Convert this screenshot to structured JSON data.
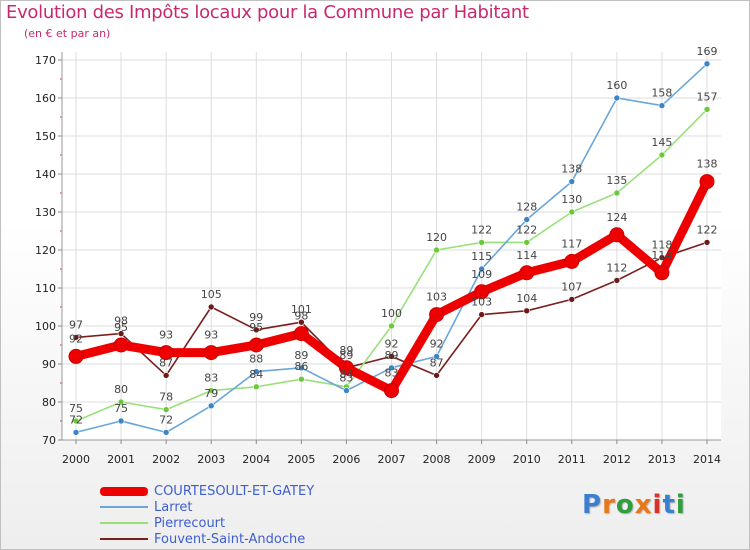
{
  "title": "Evolution des Impôts locaux pour la Commune par Habitant",
  "subtitle": "(en € et par an)",
  "logo": {
    "text": "Proxiti",
    "colors": [
      "#3a7fd0",
      "#e8791a",
      "#2f9e3c",
      "#e8791a",
      "#d6332a",
      "#3a7fd0",
      "#2f9e3c"
    ]
  },
  "chart_data": {
    "type": "line",
    "title": "Evolution des Impôts locaux pour la Commune par Habitant",
    "subtitle": "(en € et par an)",
    "xlabel": "",
    "ylabel": "",
    "categories": [
      "2000",
      "2001",
      "2002",
      "2003",
      "2004",
      "2005",
      "2006",
      "2007",
      "2008",
      "2009",
      "2010",
      "2011",
      "2012",
      "2013",
      "2014"
    ],
    "ylim": [
      70,
      170
    ],
    "yticks": [
      70,
      80,
      90,
      100,
      110,
      120,
      130,
      140,
      150,
      160,
      170
    ],
    "grid": true,
    "series": [
      {
        "name": "Fouvent-Saint-Andoche",
        "color": "#7a1f1f",
        "dot": "#6b1a1a",
        "values": [
          97,
          98,
          87,
          105,
          99,
          101,
          89,
          92,
          87,
          103,
          104,
          107,
          112,
          118,
          122
        ],
        "labels": [
          "97",
          "98",
          "87",
          "105",
          "99",
          "101",
          "89",
          "92",
          "87",
          "103",
          "104",
          "107",
          "112",
          "118",
          "122"
        ]
      },
      {
        "name": "Pierrecourt",
        "color": "#99e07a",
        "dot": "#6cc83a",
        "values": [
          75,
          80,
          78,
          83,
          84,
          86,
          84,
          100,
          120,
          122,
          122,
          130,
          135,
          145,
          157
        ],
        "labels": [
          "75",
          "80",
          "78",
          "83",
          "84",
          "86",
          "84",
          "100",
          "120",
          "122",
          "122",
          "130",
          "135",
          "145",
          "157"
        ]
      },
      {
        "name": "Larret",
        "color": "#6aa6d8",
        "dot": "#3a84c8",
        "values": [
          72,
          75,
          72,
          79,
          88,
          89,
          83,
          89,
          92,
          115,
          128,
          138,
          160,
          158,
          169
        ],
        "labels": [
          "72",
          "75",
          "72",
          "79",
          "88",
          "89",
          "83",
          "89",
          "92",
          "115",
          "128",
          "138",
          "160",
          "158",
          "169"
        ]
      },
      {
        "name": "COURTESOULT-ET-GATEY",
        "color": "#ee0000",
        "dot": "#ee0000",
        "values": [
          92,
          95,
          93,
          93,
          95,
          98,
          89,
          83,
          103,
          109,
          114,
          117,
          124,
          114,
          138
        ],
        "labels": [
          "92",
          "95",
          "93",
          "93",
          "95",
          "98",
          "89",
          "83",
          "103",
          "109",
          "114",
          "117",
          "124",
          "114",
          "138"
        ]
      }
    ]
  },
  "legend": [
    {
      "label": "COURTESOULT-ET-GATEY",
      "color": "#ee0000",
      "thickness": 9
    },
    {
      "label": "Larret",
      "color": "#6aa6d8",
      "thickness": 2
    },
    {
      "label": "Pierrecourt",
      "color": "#99e07a",
      "thickness": 2
    },
    {
      "label": "Fouvent-Saint-Andoche",
      "color": "#7a1f1f",
      "thickness": 2
    }
  ]
}
